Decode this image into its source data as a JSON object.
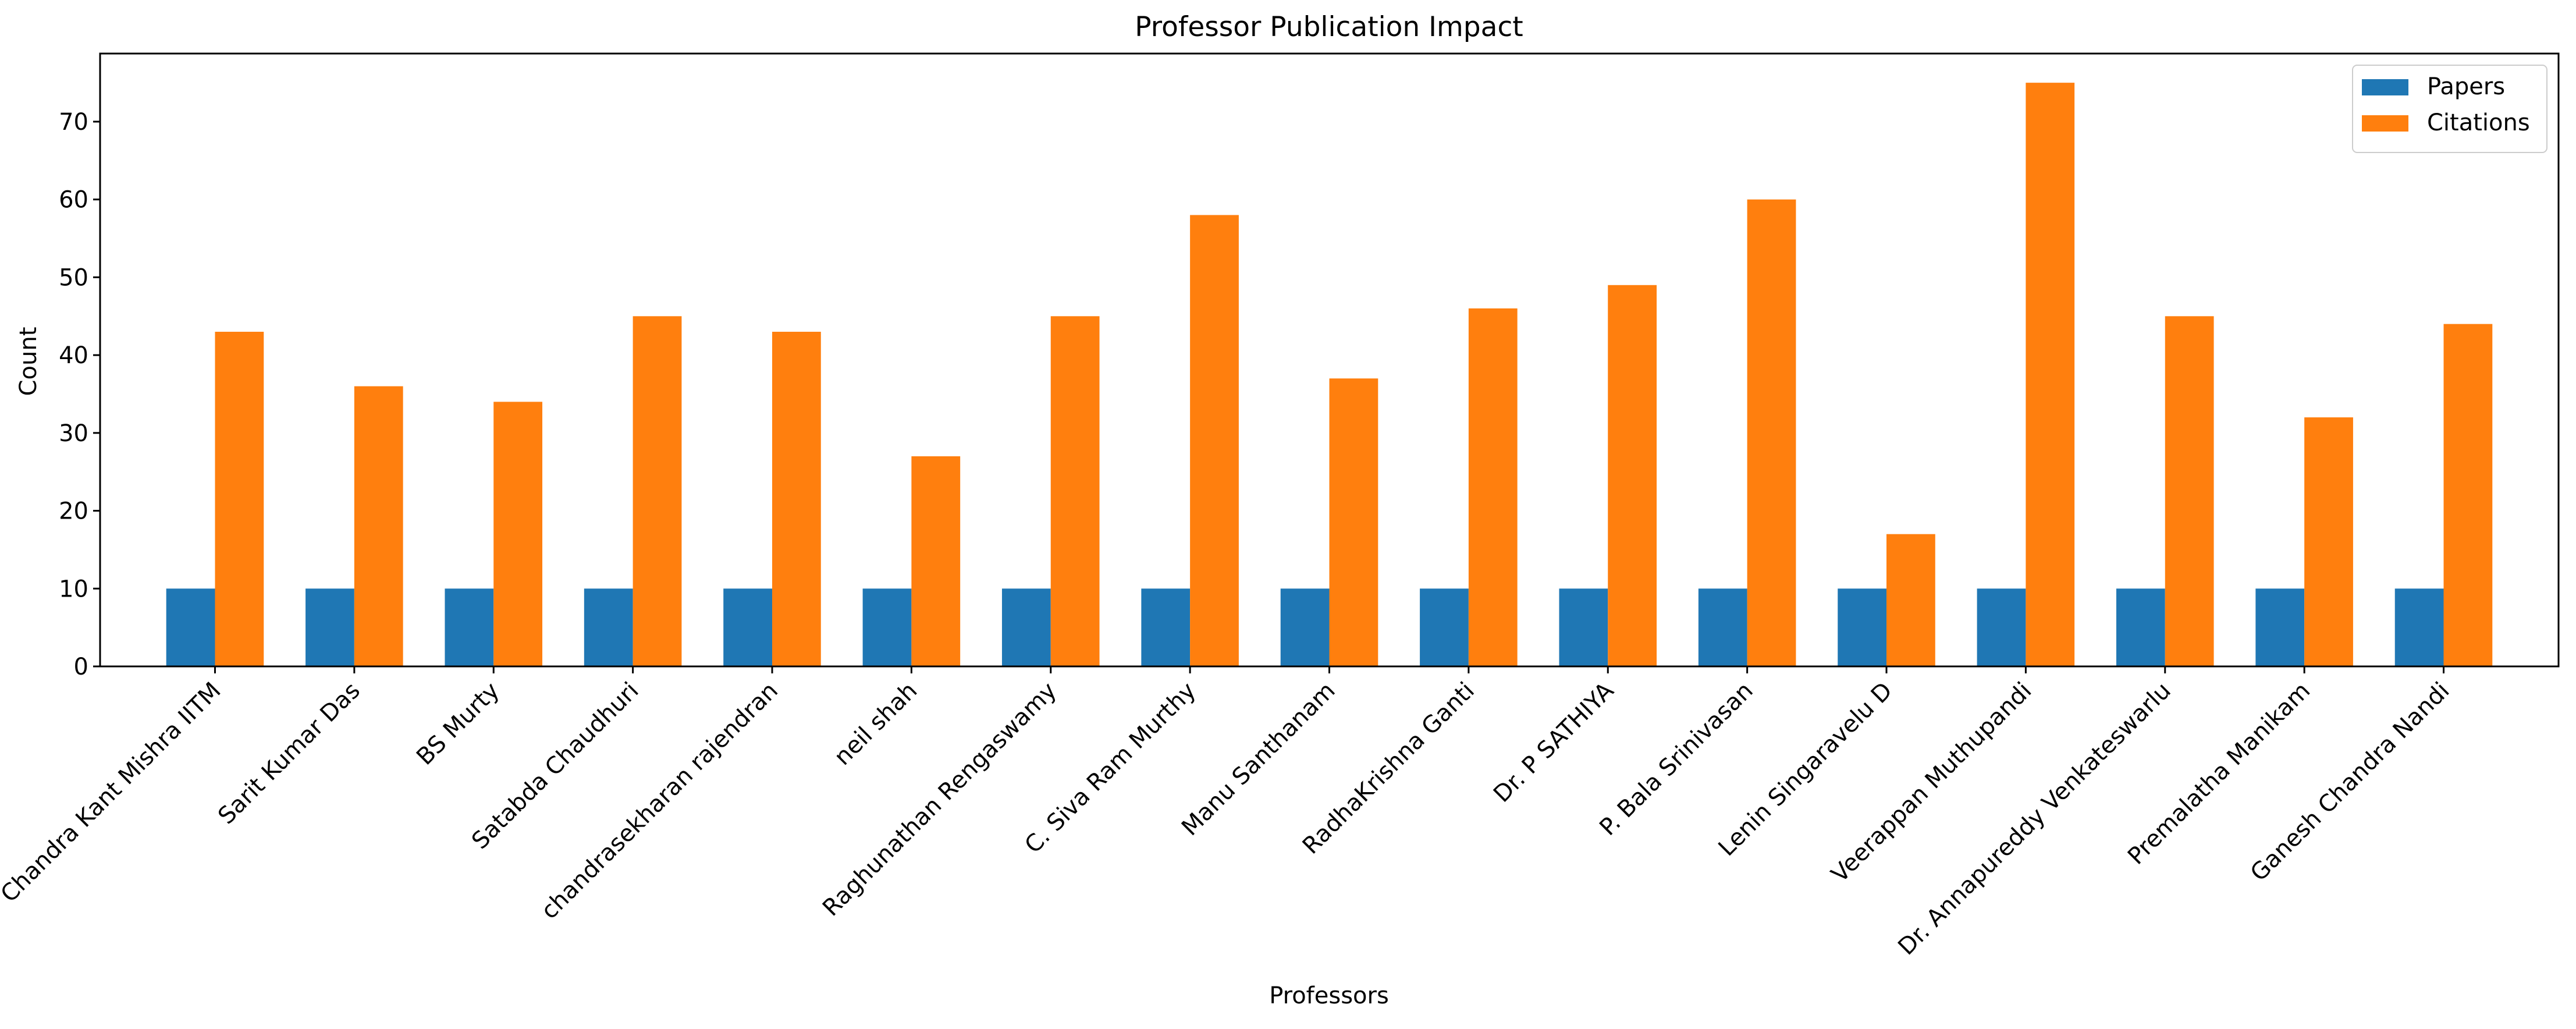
{
  "chart_data": {
    "type": "bar",
    "title": "Professor Publication Impact",
    "xlabel": "Professors",
    "ylabel": "Count",
    "ylim": [
      0,
      78.75
    ],
    "yticks": [
      0,
      10,
      20,
      30,
      40,
      50,
      60,
      70
    ],
    "grid": false,
    "legend_position": "top-right",
    "categories": [
      "Chandra Kant Mishra IITM",
      "Sarit Kumar Das",
      "BS Murty",
      "Satabda Chaudhuri",
      "chandrasekharan rajendran",
      "neil shah",
      "Raghunathan Rengaswamy",
      "C. Siva Ram Murthy",
      "Manu Santhanam",
      "RadhaKrishna Ganti",
      "Dr. P SATHIYA",
      "P. Bala Srinivasan",
      "Lenin Singaravelu D",
      "Veerappan Muthupandi",
      "Dr. Annapureddy Venkateswarlu",
      "Premalatha Manikam",
      "Ganesh Chandra Nandi"
    ],
    "series": [
      {
        "name": "Papers",
        "color": "#1f77b4",
        "values": [
          10,
          10,
          10,
          10,
          10,
          10,
          10,
          10,
          10,
          10,
          10,
          10,
          10,
          10,
          10,
          10,
          10
        ]
      },
      {
        "name": "Citations",
        "color": "#ff7f0e",
        "values": [
          43,
          36,
          34,
          45,
          43,
          27,
          45,
          58,
          37,
          46,
          49,
          60,
          17,
          75,
          45,
          32,
          44
        ]
      }
    ]
  }
}
